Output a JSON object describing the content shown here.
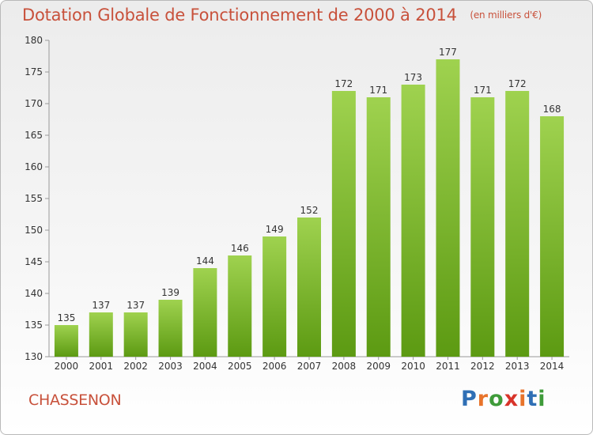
{
  "title": "Dotation Globale de Fonctionnement de 2000 à 2014",
  "unit": "(en milliers d'€)",
  "town": "CHASSENON",
  "logo": {
    "text": "Proxiti",
    "colors": [
      "#2f6fb5",
      "#e8742b",
      "#3f9b3a",
      "#d8342a",
      "#e8742b",
      "#2f6fb5",
      "#3f9b3a"
    ]
  },
  "colors": {
    "title": "#c8513b",
    "bar_top": "#9fd24f",
    "bar_bottom": "#5c9a12",
    "axis": "#999999",
    "label": "#333333"
  },
  "chart_data": {
    "type": "bar",
    "title": "Dotation Globale de Fonctionnement de 2000 à 2014",
    "subtitle": "(en milliers d'€)",
    "categories": [
      "2000",
      "2001",
      "2002",
      "2003",
      "2004",
      "2005",
      "2006",
      "2007",
      "2008",
      "2009",
      "2010",
      "2011",
      "2012",
      "2013",
      "2014"
    ],
    "values": [
      135,
      137,
      137,
      139,
      144,
      146,
      149,
      152,
      172,
      171,
      173,
      177,
      171,
      172,
      168
    ],
    "ylim": [
      130,
      180
    ],
    "yticks": [
      130,
      135,
      140,
      145,
      150,
      155,
      160,
      165,
      170,
      175,
      180
    ],
    "xlabel": "",
    "ylabel": "",
    "grid": false,
    "legend": "none"
  }
}
